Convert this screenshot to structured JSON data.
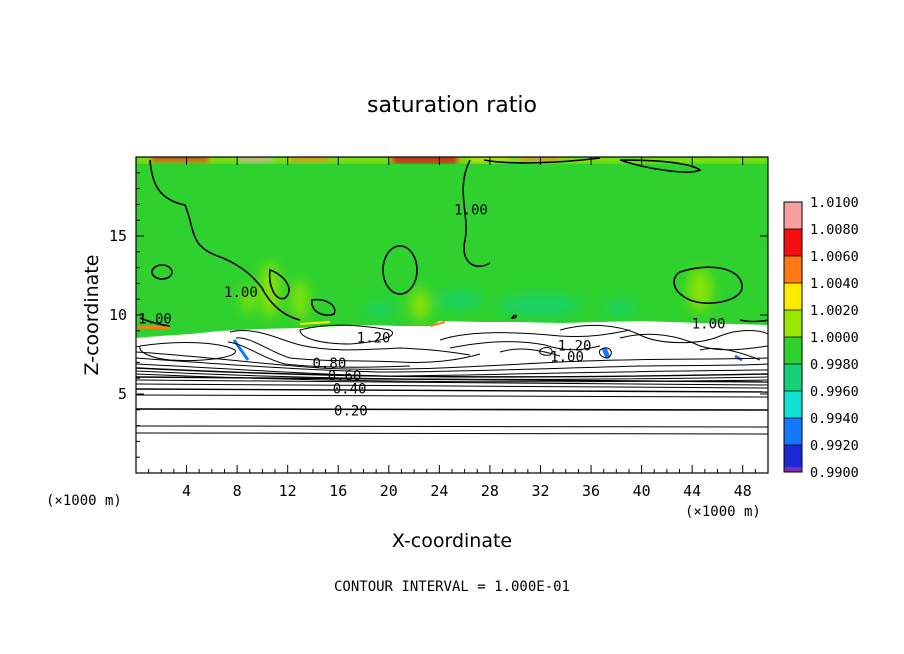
{
  "chart_data": {
    "type": "heatmap",
    "title": "saturation ratio",
    "xlabel": "X-coordinate",
    "ylabel": "Z-coordinate",
    "x_unit": "(×1000 m)",
    "xlim": [
      0,
      50
    ],
    "ylim": [
      0,
      20
    ],
    "x_ticks": [
      4,
      8,
      12,
      16,
      20,
      24,
      28,
      32,
      36,
      40,
      44,
      48
    ],
    "y_ticks": [
      5,
      10,
      15
    ],
    "colorbar": {
      "levels": [
        "1.0100",
        "1.0080",
        "1.0060",
        "1.0040",
        "1.0020",
        "1.0000",
        "0.9980",
        "0.9960",
        "0.9940",
        "0.9920",
        "0.9900"
      ],
      "colors": [
        "#f59f9f",
        "#f50f0f",
        "#ff7a14",
        "#ffea00",
        "#9ae600",
        "#2ed12e",
        "#14d278",
        "#12e2d6",
        "#1478ff",
        "#1a28d6",
        "#7a2eb8"
      ]
    },
    "contour_labels": [
      {
        "text": "1.00",
        "x": 26.5,
        "z": 16.6
      },
      {
        "text": "1.00",
        "x": 8.3,
        "z": 11.4
      },
      {
        "text": "1.00",
        "x": 1.5,
        "z": 9.7
      },
      {
        "text": "1.00",
        "x": 45.3,
        "z": 9.4
      },
      {
        "text": "1.20",
        "x": 18.8,
        "z": 8.5
      },
      {
        "text": "1.20",
        "x": 34.7,
        "z": 8.0
      },
      {
        "text": "1.00",
        "x": 34.1,
        "z": 7.3
      },
      {
        "text": "0.80",
        "x": 15.3,
        "z": 6.9
      },
      {
        "text": "0.60",
        "x": 16.5,
        "z": 6.1
      },
      {
        "text": "0.40",
        "x": 16.9,
        "z": 5.3
      },
      {
        "text": "0.20",
        "x": 17.0,
        "z": 3.9
      }
    ],
    "contour_interval": "CONTOUR INTERVAL = 1.000E-01"
  }
}
